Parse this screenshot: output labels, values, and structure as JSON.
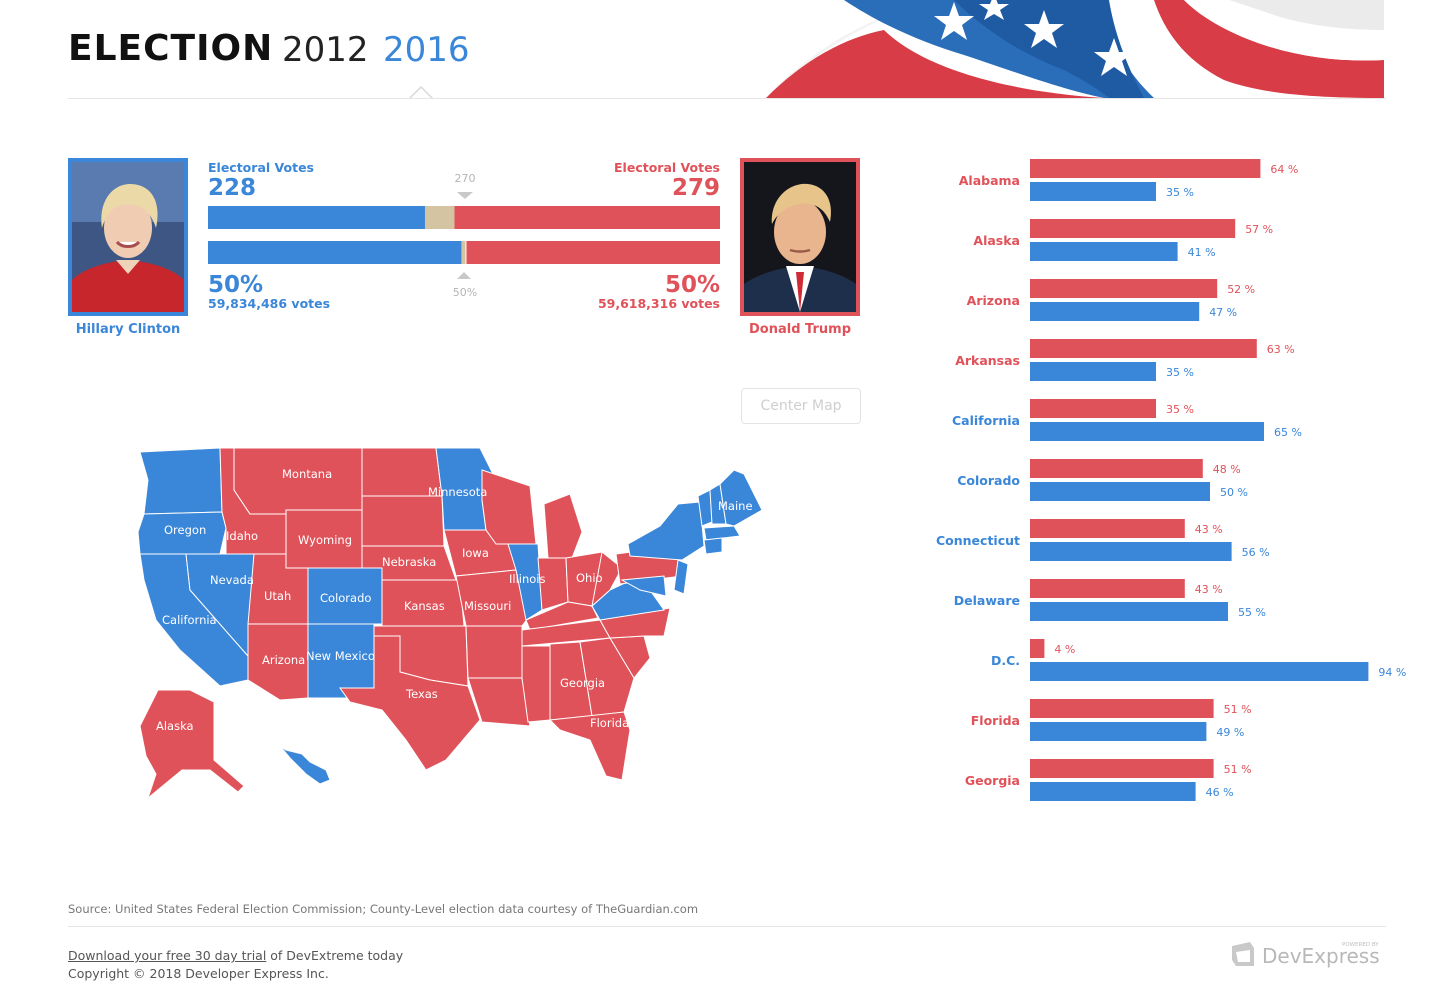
{
  "header": {
    "title": "ELECTION",
    "tabs": [
      {
        "label": "2012",
        "active": false
      },
      {
        "label": "2016",
        "active": true
      }
    ]
  },
  "colors": {
    "democrat": "#3a86d8",
    "republican": "#e05259",
    "undecided": "#d5c4a1"
  },
  "candidates": {
    "democrat": {
      "name": "Hillary Clinton",
      "electoral_label": "Electoral Votes",
      "electoral_votes": "228",
      "percent": "50%",
      "popular_votes": "59,834,486 votes"
    },
    "republican": {
      "name": "Donald Trump",
      "electoral_label": "Electoral Votes",
      "electoral_votes": "279",
      "percent": "50%",
      "popular_votes": "59,618,316 votes"
    }
  },
  "electoral_bar": {
    "total": 538,
    "democrat": 228,
    "republican": 279,
    "threshold_label": "270"
  },
  "popular_bar": {
    "democrat_votes": 59834486,
    "republican_votes": 59618316,
    "marker_label": "50%"
  },
  "map": {
    "center_button": "Center Map",
    "state_labels": [
      "Montana",
      "Minnesota",
      "Oregon",
      "Idaho",
      "Wyoming",
      "Maine",
      "Nebraska",
      "Iowa",
      "Nevada",
      "Illinois",
      "Ohio",
      "Utah",
      "Colorado",
      "Kansas",
      "Missouri",
      "California",
      "Arizona",
      "New Mexico",
      "Georgia",
      "Texas",
      "Alaska",
      "Florida"
    ]
  },
  "chart_data": {
    "type": "bar",
    "orientation": "horizontal",
    "categories": [
      "Alabama",
      "Alaska",
      "Arizona",
      "Arkansas",
      "California",
      "Colorado",
      "Connecticut",
      "Delaware",
      "D.C.",
      "Florida",
      "Georgia"
    ],
    "winner": [
      "republican",
      "republican",
      "republican",
      "republican",
      "democrat",
      "democrat",
      "democrat",
      "democrat",
      "democrat",
      "republican",
      "republican"
    ],
    "series": [
      {
        "party": "republican",
        "values": [
          64,
          57,
          52,
          63,
          35,
          48,
          43,
          43,
          4,
          51,
          51
        ]
      },
      {
        "party": "democrat",
        "values": [
          35,
          41,
          47,
          35,
          65,
          50,
          56,
          55,
          94,
          49,
          46
        ]
      }
    ],
    "value_suffix": " %"
  },
  "footer": {
    "source": "Source: United States Federal Election Commission; County-Level election data courtesy of TheGuardian.com",
    "download_link": "Download your free 30 day trial",
    "download_rest": " of DevExtreme today",
    "copyright": "Copyright © 2018 Developer Express Inc.",
    "logo_small": "POWERED BY",
    "logo": "DevExpress"
  }
}
